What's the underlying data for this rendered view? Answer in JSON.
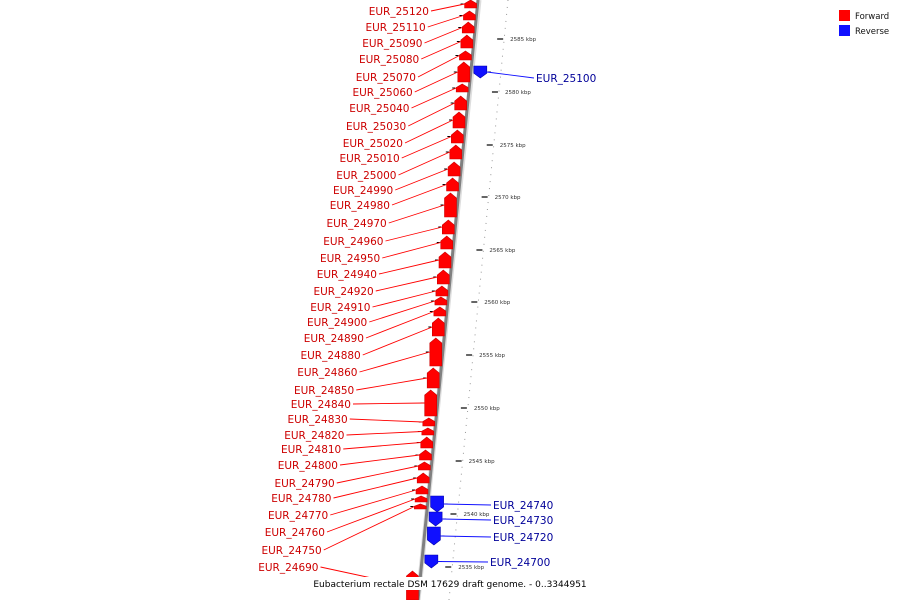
{
  "caption": "Eubacterium rectale DSM 17629 draft genome. - 0..3344951",
  "legend": [
    {
      "label": "Forward",
      "color": "#ff0000"
    },
    {
      "label": "Reverse",
      "color": "#1010ff"
    }
  ],
  "colors": {
    "forward": "#ff0000",
    "reverse": "#1010ff",
    "backbone": "#808080",
    "forward_label": "#cc0000",
    "reverse_label": "#000099"
  },
  "ticks": [
    "2585 kbp",
    "2580 kbp",
    "2575 kbp",
    "2570 kbp",
    "2565 kbp",
    "2560 kbp",
    "2555 kbp",
    "2550 kbp",
    "2545 kbp",
    "2540 kbp",
    "2535 kbp"
  ],
  "forward_genes": [
    "EUR_25120",
    "EUR_25110",
    "EUR_25090",
    "EUR_25080",
    "EUR_25070",
    "EUR_25060",
    "EUR_25040",
    "EUR_25030",
    "EUR_25020",
    "EUR_25010",
    "EUR_25000",
    "EUR_24990",
    "EUR_24980",
    "EUR_24970",
    "EUR_24960",
    "EUR_24950",
    "EUR_24940",
    "EUR_24920",
    "EUR_24910",
    "EUR_24900",
    "EUR_24890",
    "EUR_24880",
    "EUR_24860",
    "EUR_24850",
    "EUR_24840",
    "EUR_24830",
    "EUR_24820",
    "EUR_24810",
    "EUR_24800",
    "EUR_24790",
    "EUR_24780",
    "EUR_24770",
    "EUR_24760",
    "EUR_24750",
    "EUR_24690"
  ],
  "reverse_genes": [
    "EUR_25100",
    "EUR_24740",
    "EUR_24730",
    "EUR_24720",
    "EUR_24700"
  ]
}
